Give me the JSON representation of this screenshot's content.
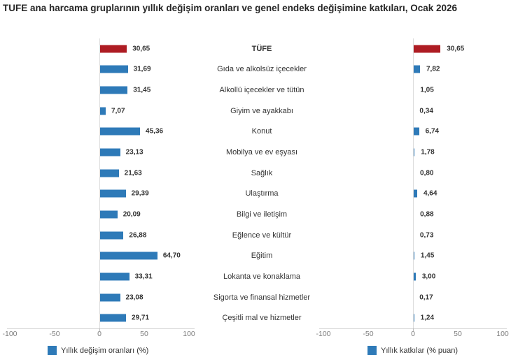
{
  "title": "TUFE ana harcama gruplarının yıllık değişim oranları ve genel endeks değişimine katkıları, Ocak 2026",
  "colors": {
    "bar_blue": "#2E7AB8",
    "bar_red": "#AE1C23",
    "grid_line": "#D9D9D9",
    "tick_text": "#7F7F7F",
    "value_text": "#333333"
  },
  "legend": {
    "rates": "Yıllık değişim oranları (%)",
    "contributions": "Yıllık katkılar (% puan)"
  },
  "axis": {
    "tick_labels": [
      "-100",
      "-50",
      "0",
      "50",
      "100"
    ],
    "tick_values": [
      -100,
      -50,
      0,
      50,
      100
    ]
  },
  "chart_data": {
    "type": "bar",
    "orientation": "horizontal",
    "title": "TUFE ana harcama gruplarının yıllık değişim oranları ve genel endeks değişimine katkıları, Ocak 2026",
    "categories": [
      "TÜFE",
      "Gıda ve alkolsüz içecekler",
      "Alkollü içecekler ve tütün",
      "Giyim ve ayakkabı",
      "Konut",
      "Mobilya ve ev eşyası",
      "Sağlık",
      "Ulaştırma",
      "Bilgi ve iletişim",
      "Eğlence ve kültür",
      "Eğitim",
      "Lokanta ve konaklama",
      "Sigorta ve finansal hizmetler",
      "Çeşitli mal ve hizmetler"
    ],
    "series": [
      {
        "name": "Yıllık değişim oranları (%)",
        "values": [
          30.65,
          31.69,
          31.45,
          7.07,
          45.36,
          23.13,
          21.63,
          29.39,
          20.09,
          26.88,
          64.7,
          33.31,
          23.08,
          29.71
        ],
        "labels": [
          "30,65",
          "31,69",
          "31,45",
          "7,07",
          "45,36",
          "23,13",
          "21,63",
          "29,39",
          "20,09",
          "26,88",
          "64,70",
          "33,31",
          "23,08",
          "29,71"
        ]
      },
      {
        "name": "Yıllık katkılar (% puan)",
        "values": [
          30.65,
          7.82,
          1.05,
          0.34,
          6.74,
          1.78,
          0.8,
          4.64,
          0.88,
          0.73,
          1.45,
          3.0,
          0.17,
          1.24
        ],
        "labels": [
          "30,65",
          "7,82",
          "1,05",
          "0,34",
          "6,74",
          "1,78",
          "0,80",
          "4,64",
          "0,88",
          "0,73",
          "1,45",
          "3,00",
          "0,17",
          "1,24"
        ]
      }
    ],
    "highlight_category": "TÜFE",
    "xlim": [
      -100,
      100
    ],
    "grid": false,
    "legend_position": "bottom"
  }
}
